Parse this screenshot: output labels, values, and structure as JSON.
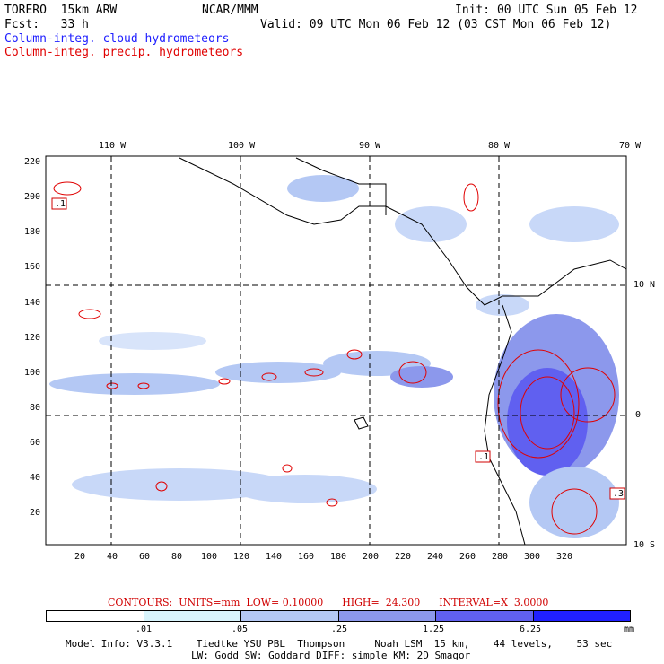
{
  "header": {
    "model": "TORERO  15km ARW",
    "org": "NCAR/MMM",
    "init": "Init: 00 UTC Sun 05 Feb 12",
    "fcst": "Fcst:   33 h",
    "valid": "Valid: 09 UTC Mon 06 Feb 12 (03 CST Mon 06 Feb 12)",
    "legend_cloud": "Column-integ. cloud hydrometeors",
    "legend_precip": "Column-integ. precip. hydrometeors"
  },
  "colors": {
    "cloud": "#2020ff",
    "precip": "#e00000"
  },
  "lon_labels": [
    "110 W",
    "100 W",
    "90 W",
    "80 W",
    "70 W"
  ],
  "lat_labels": [
    "10 N",
    "0",
    "10 S"
  ],
  "y_ticks": [
    "220",
    "200",
    "180",
    "160",
    "140",
    "120",
    "100",
    "80",
    "60",
    "40",
    "20"
  ],
  "x_ticks": [
    "20",
    "40",
    "60",
    "80",
    "100",
    "120",
    "140",
    "160",
    "180",
    "200",
    "220",
    "240",
    "260",
    "280",
    "300",
    "320"
  ],
  "boxes": [
    ".1",
    ".1",
    ".3"
  ],
  "contour_line": "CONTOURS:  UNITS=mm  LOW= 0.10000      HIGH=  24.300      INTERVAL=X  3.0000",
  "colorbar": {
    "labels": [
      ".01",
      ".05",
      ".25",
      "1.25",
      "6.25"
    ],
    "unit": "mm",
    "colors": [
      "#ffffff",
      "#d8f4fc",
      "#b4c8f4",
      "#8c98ec",
      "#6060f0",
      "#2020ff"
    ]
  },
  "model_info_1": "Model Info: V3.3.1    Tiedtke YSU PBL  Thompson     Noah LSM  15 km,    44 levels,    53 sec",
  "model_info_2": "LW: Godd SW: Goddard DIFF: simple KM: 2D Smagor"
}
